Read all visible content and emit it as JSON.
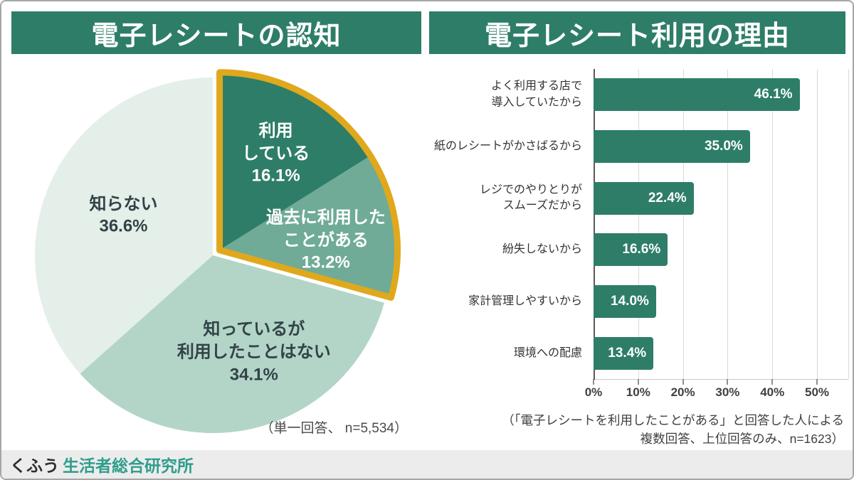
{
  "colors": {
    "brand_green": "#2E7D68",
    "highlight_gold": "#E0A81D",
    "footer_teal": "#2E9E8C",
    "dark_label": "#334247"
  },
  "footer": {
    "brand": "くふう",
    "brand_suffix": "生活者総合研究所"
  },
  "chart_data": [
    {
      "type": "pie",
      "title": "電子レシートの認知",
      "note": "（単一回答、 n=5,534）",
      "direction": "clockwise",
      "start_angle_deg": 0,
      "highlight_outline_color": "#E0A81D",
      "segments": [
        {
          "label": "利用している",
          "value": 16.1,
          "display": "16.1%",
          "color": "#2E7D68",
          "text_color": "#FFFFFF",
          "exploded": true,
          "label_lines": [
            "利用",
            "している",
            "16.1%"
          ],
          "label_r": 0.62,
          "label_offset": [
            4,
            0
          ]
        },
        {
          "label": "過去に利用したことがある",
          "value": 13.2,
          "display": "13.2%",
          "color": "#6FAB97",
          "text_color": "#FFFFFF",
          "exploded": true,
          "label_lines": [
            "過去に利用した",
            "ことがある",
            "13.2%"
          ],
          "label_r": 0.66,
          "label_offset": [
            -14,
            10
          ]
        },
        {
          "label": "知っているが利用したことはない",
          "value": 34.1,
          "display": "34.1%",
          "color": "#B3D5C8",
          "text_color": "#334247",
          "exploded": false,
          "label_lines": [
            "知っているが",
            "利用したことはない",
            "34.1%"
          ],
          "label_r": 0.56,
          "label_offset": [
            26,
            0
          ]
        },
        {
          "label": "知らない",
          "value": 36.6,
          "display": "36.6%",
          "color": "#E4EFEA",
          "text_color": "#334247",
          "exploded": false,
          "label_lines": [
            "知らない",
            "36.6%"
          ],
          "label_r": 0.55,
          "label_offset": [
            0,
            0
          ]
        }
      ]
    },
    {
      "type": "bar",
      "orientation": "horizontal",
      "title": "電子レシート利用の理由",
      "note": "（「電子レシートを利用したことがある」と回答した人による\n複数回答、上位回答のみ、n=1623）",
      "bar_color": "#2E7D68",
      "xlim": [
        0,
        57
      ],
      "grid": true,
      "categories": [
        [
          "よく利用する店で",
          "導入していたから"
        ],
        [
          "紙のレシートがかさばるから"
        ],
        [
          "レジでのやりとりが",
          "スムーズだから"
        ],
        [
          "紛失しないから"
        ],
        [
          "家計管理しやすいから"
        ],
        [
          "環境への配慮"
        ]
      ],
      "values": [
        46.1,
        35.0,
        22.4,
        16.6,
        14.0,
        13.4
      ],
      "value_labels": [
        "46.1%",
        "35.0%",
        "22.4%",
        "16.6%",
        "14.0%",
        "13.4%"
      ],
      "tick_values": [
        0,
        10,
        20,
        30,
        40,
        50
      ],
      "tick_labels": [
        "0%",
        "10%",
        "20%",
        "30%",
        "40%",
        "50%"
      ]
    }
  ]
}
